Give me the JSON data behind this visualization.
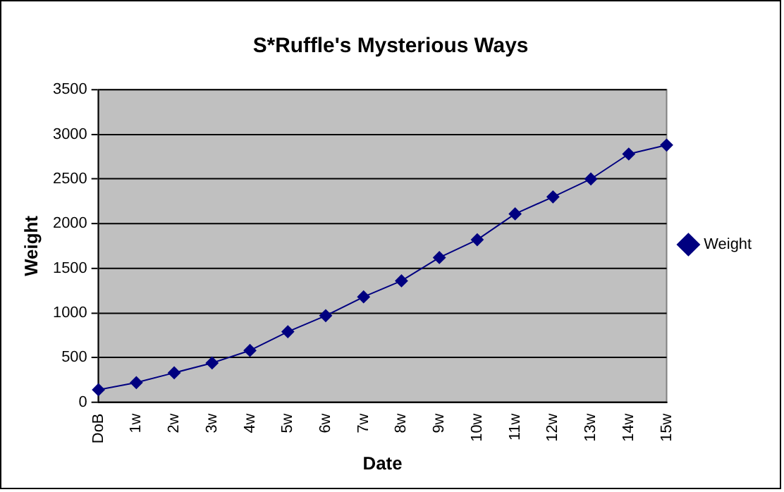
{
  "chart_data": {
    "type": "line",
    "title": "S*Ruffle's Mysterious Ways",
    "xlabel": "Date",
    "ylabel": "Weight",
    "categories": [
      "DoB",
      "1w",
      "2w",
      "3w",
      "4w",
      "5w",
      "6w",
      "7w",
      "8w",
      "9w",
      "10w",
      "11w",
      "12w",
      "13w",
      "14w",
      "15w"
    ],
    "series": [
      {
        "name": "Weight",
        "color": "#000080",
        "values": [
          140,
          220,
          330,
          440,
          580,
          790,
          970,
          1180,
          1360,
          1620,
          1820,
          2110,
          2300,
          2500,
          2780,
          2880
        ]
      }
    ],
    "ylim": [
      0,
      3500
    ],
    "yticks": [
      0,
      500,
      1000,
      1500,
      2000,
      2500,
      3000,
      3500
    ],
    "grid": "y",
    "legend": "right",
    "marker": "diamond",
    "line_style": "solid"
  }
}
